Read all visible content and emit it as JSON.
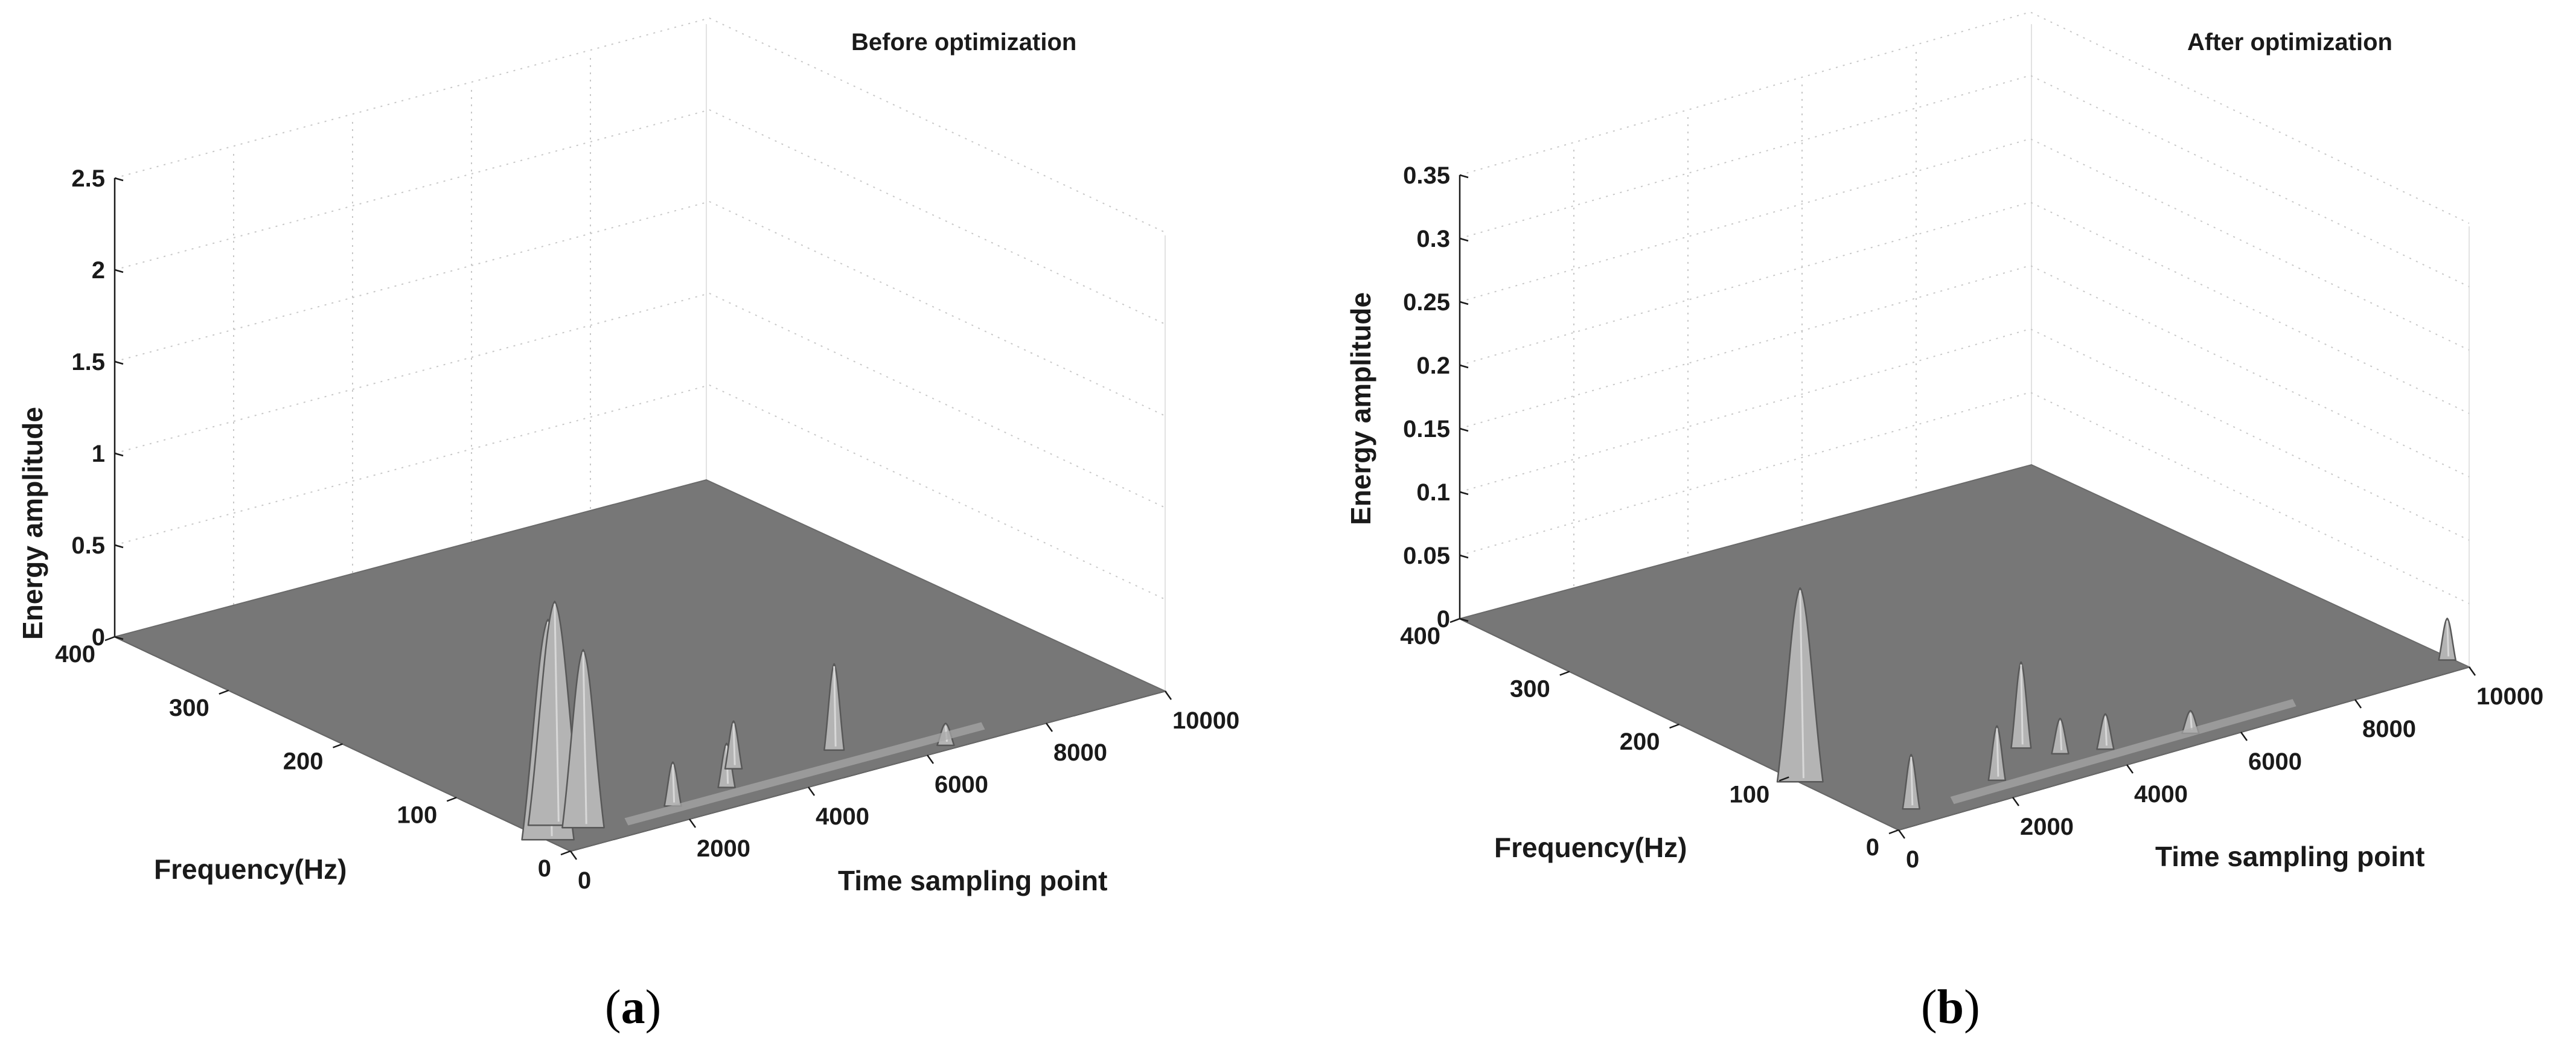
{
  "chart_data": [
    {
      "type": "surface",
      "title": "Before optimization",
      "panel_label": "a",
      "xlabel": "Time sampling point",
      "ylabel": "Frequency(Hz)",
      "zlabel": "Energy amplitude",
      "xlim": [
        0,
        10000
      ],
      "ylim": [
        0,
        400
      ],
      "zlim": [
        0,
        2.5
      ],
      "xticks": [
        "0",
        "2000",
        "4000",
        "6000",
        "8000",
        "10000"
      ],
      "yticks": [
        "0",
        "100",
        "200",
        "300",
        "400"
      ],
      "zticks": [
        "0",
        "0.5",
        "1",
        "1.5",
        "2",
        "2.5"
      ],
      "peaks": [
        {
          "t": 100,
          "f": 25,
          "value": 1.18
        },
        {
          "t": 500,
          "f": 40,
          "value": 1.2
        },
        {
          "t": 750,
          "f": 28,
          "value": 0.95
        },
        {
          "t": 2200,
          "f": 25,
          "value": 0.22
        },
        {
          "t": 3200,
          "f": 30,
          "value": 0.22
        },
        {
          "t": 3700,
          "f": 50,
          "value": 0.24
        },
        {
          "t": 5200,
          "f": 40,
          "value": 0.45
        },
        {
          "t": 6500,
          "f": 10,
          "value": 0.1
        }
      ]
    },
    {
      "type": "surface",
      "title": "After optimization",
      "panel_label": "b",
      "xlabel": "Time sampling point",
      "ylabel": "Frequency(Hz)",
      "zlabel": "Energy amplitude",
      "xlim": [
        0,
        10000
      ],
      "ylim": [
        0,
        400
      ],
      "zlim": [
        0,
        0.35
      ],
      "xticks": [
        "0",
        "2000",
        "4000",
        "6000",
        "8000",
        "10000"
      ],
      "yticks": [
        "0",
        "100",
        "200",
        "300",
        "400"
      ],
      "zticks": [
        "0",
        "0.05",
        "0.1",
        "0.15",
        "0.2",
        "0.25",
        "0.3",
        "0.35"
      ],
      "peaks": [
        {
          "t": 100,
          "f": 95,
          "value": 0.15
        },
        {
          "t": 700,
          "f": 25,
          "value": 0.04
        },
        {
          "t": 2300,
          "f": 30,
          "value": 0.04
        },
        {
          "t": 3300,
          "f": 60,
          "value": 0.065
        },
        {
          "t": 3600,
          "f": 40,
          "value": 0.025
        },
        {
          "t": 4200,
          "f": 30,
          "value": 0.025
        },
        {
          "t": 5500,
          "f": 20,
          "value": 0.015
        },
        {
          "t": 10000,
          "f": 20,
          "value": 0.03
        }
      ]
    }
  ]
}
